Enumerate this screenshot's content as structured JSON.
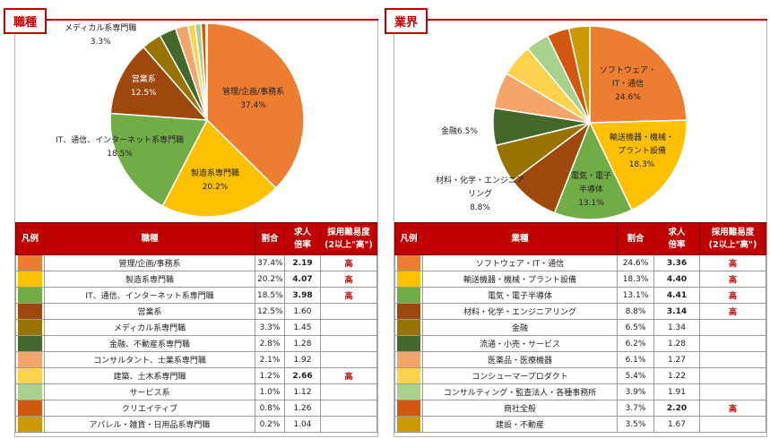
{
  "left": {
    "tag": "職種",
    "chart_data": {
      "type": "pie",
      "slices": [
        {
          "label": "管理/企画/事務系",
          "value": 37.4,
          "color": "#ED7D31"
        },
        {
          "label": "製造系専門職",
          "value": 20.2,
          "color": "#FFC000"
        },
        {
          "label": "IT、通信、インターネット系専門職",
          "value": 18.5,
          "color": "#70AD47"
        },
        {
          "label": "営業系",
          "value": 12.5,
          "color": "#9E480E"
        },
        {
          "label": "メディカル系専門職",
          "value": 3.3,
          "color": "#997300"
        },
        {
          "label": "金融、不動産系専門職",
          "value": 2.8,
          "color": "#43682B"
        },
        {
          "label": "コンサルタント、士業系専門職",
          "value": 2.1,
          "color": "#F4A56B"
        },
        {
          "label": "建築、土木系専門職",
          "value": 1.2,
          "color": "#FFD24D"
        },
        {
          "label": "サービス系",
          "value": 1.0,
          "color": "#A9D18E"
        },
        {
          "label": "クリエイティブ",
          "value": 0.8,
          "color": "#D2570F"
        },
        {
          "label": "アパレル・雑貨・日用品系専門職",
          "value": 0.2,
          "color": "#CC9900"
        }
      ]
    },
    "pie_labels": {
      "l0": {
        "name": "管理/企画/事務系",
        "pct": "37.4%"
      },
      "l1": {
        "name": "製造系専門職",
        "pct": "20.2%"
      },
      "l2": {
        "name": "IT、通信、インターネット系専門職",
        "pct": "18.5%"
      },
      "l3": {
        "name": "営業系",
        "pct": "12.5%"
      },
      "l4": {
        "name": "メディカル系専門職",
        "pct": "3.3%"
      }
    },
    "table": {
      "headers": {
        "legend": "凡例",
        "category": "職種",
        "share": "割合",
        "ratio_a": "求人",
        "ratio_b": "倍率",
        "diff_a": "採用難易度",
        "diff_b": "(2以上\"高\")"
      },
      "rows": [
        {
          "name": "管理/企画/事務系",
          "share": "37.4%",
          "ratio": "2.19",
          "bold": true,
          "diff": "高"
        },
        {
          "name": "製造系専門職",
          "share": "20.2%",
          "ratio": "4.07",
          "bold": true,
          "diff": "高"
        },
        {
          "name": "IT、通信、インターネット系専門職",
          "share": "18.5%",
          "ratio": "3.98",
          "bold": true,
          "diff": "高"
        },
        {
          "name": "営業系",
          "share": "12.5%",
          "ratio": "1.60",
          "bold": false,
          "diff": ""
        },
        {
          "name": "メディカル系専門職",
          "share": "3.3%",
          "ratio": "1.45",
          "bold": false,
          "diff": ""
        },
        {
          "name": "金融、不動産系専門職",
          "share": "2.8%",
          "ratio": "1.28",
          "bold": false,
          "diff": ""
        },
        {
          "name": "コンサルタント、士業系専門職",
          "share": "2.1%",
          "ratio": "1.92",
          "bold": false,
          "diff": ""
        },
        {
          "name": "建築、土木系専門職",
          "share": "1.2%",
          "ratio": "2.66",
          "bold": true,
          "diff": "高"
        },
        {
          "name": "サービス系",
          "share": "1.0%",
          "ratio": "1.12",
          "bold": false,
          "diff": ""
        },
        {
          "name": "クリエイティブ",
          "share": "0.8%",
          "ratio": "1.26",
          "bold": false,
          "diff": ""
        },
        {
          "name": "アパレル・雑貨・日用品系専門職",
          "share": "0.2%",
          "ratio": "1.04",
          "bold": false,
          "diff": ""
        }
      ]
    }
  },
  "right": {
    "tag": "業界",
    "chart_data": {
      "type": "pie",
      "slices": [
        {
          "label": "ソフトウェア・IT・通信",
          "value": 24.6,
          "color": "#ED7D31"
        },
        {
          "label": "輸送機器・機械・プラント設備",
          "value": 18.3,
          "color": "#FFC000"
        },
        {
          "label": "電気・電子半導体",
          "value": 13.1,
          "color": "#70AD47"
        },
        {
          "label": "材料・化学・エンジニアリング",
          "value": 8.8,
          "color": "#9E480E"
        },
        {
          "label": "金融",
          "value": 6.5,
          "color": "#997300"
        },
        {
          "label": "流通・小売・サービス",
          "value": 6.2,
          "color": "#43682B"
        },
        {
          "label": "医薬品・医療機器",
          "value": 6.1,
          "color": "#F4A56B"
        },
        {
          "label": "コンシューマープロダクト",
          "value": 5.4,
          "color": "#FFD24D"
        },
        {
          "label": "コンサルティング・監査法人・各種事務所",
          "value": 3.9,
          "color": "#A9D18E"
        },
        {
          "label": "商社全般",
          "value": 3.7,
          "color": "#D2570F"
        },
        {
          "label": "建設・不動産",
          "value": 3.5,
          "color": "#CC9900"
        }
      ]
    },
    "pie_labels": {
      "l0": {
        "name_a": "ソフトウェア・",
        "name_b": "IT・通信",
        "pct": "24.6%"
      },
      "l1": {
        "name_a": "輸送機器・機械・",
        "name_b": "プラント設備",
        "pct": "18.3%"
      },
      "l2": {
        "name_a": "電気・電子",
        "name_b": "半導体",
        "pct": "13.1%"
      },
      "l3": {
        "name_a": "材料・化学・エンジニア",
        "name_b": "リング",
        "pct": "8.8%"
      },
      "l4": {
        "name": "金融",
        "pct": "6.5%"
      }
    },
    "table": {
      "headers": {
        "legend": "凡例",
        "category": "業種",
        "share": "割合",
        "ratio_a": "求人",
        "ratio_b": "倍率",
        "diff_a": "採用難易度",
        "diff_b": "(2以上\"高\")"
      },
      "rows": [
        {
          "name": "ソフトウェア・IT・通信",
          "share": "24.6%",
          "ratio": "3.36",
          "bold": true,
          "diff": "高"
        },
        {
          "name": "輸送機器・機械・プラント設備",
          "share": "18.3%",
          "ratio": "4.40",
          "bold": true,
          "diff": "高"
        },
        {
          "name": "電気・電子半導体",
          "share": "13.1%",
          "ratio": "4.41",
          "bold": true,
          "diff": "高"
        },
        {
          "name": "材料・化学・エンジニアリング",
          "share": "8.8%",
          "ratio": "3.14",
          "bold": true,
          "diff": "高"
        },
        {
          "name": "金融",
          "share": "6.5%",
          "ratio": "1.34",
          "bold": false,
          "diff": ""
        },
        {
          "name": "流通・小売・サービス",
          "share": "6.2%",
          "ratio": "1.28",
          "bold": false,
          "diff": ""
        },
        {
          "name": "医薬品・医療機器",
          "share": "6.1%",
          "ratio": "1.27",
          "bold": false,
          "diff": ""
        },
        {
          "name": "コンシューマープロダクト",
          "share": "5.4%",
          "ratio": "1.22",
          "bold": false,
          "diff": ""
        },
        {
          "name": "コンサルティング・監査法人・各種事務所",
          "share": "3.9%",
          "ratio": "1.91",
          "bold": false,
          "diff": ""
        },
        {
          "name": "商社全般",
          "share": "3.7%",
          "ratio": "2.20",
          "bold": true,
          "diff": "高"
        },
        {
          "name": "建設・不動産",
          "share": "3.5%",
          "ratio": "1.67",
          "bold": false,
          "diff": ""
        }
      ]
    }
  }
}
